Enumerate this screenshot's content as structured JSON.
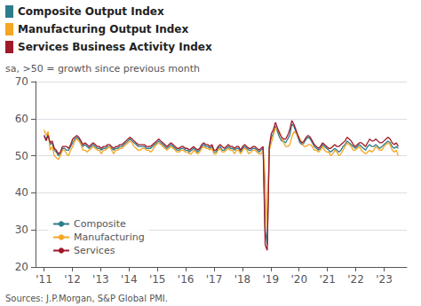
{
  "chart_data": {
    "type": "line",
    "subtitle": "sa, >50 = growth since previous month",
    "annotations": [
      {
        "text": "Composite Output Index",
        "color": "#2E7D8C"
      },
      {
        "text": "Manufacturing Output Index",
        "color": "#F5A623"
      },
      {
        "text": "Services Business Activity Index",
        "color": "#A0192A"
      },
      {
        "text": "Sources: J.P.Morgan, S&P Global PMI."
      }
    ],
    "xlim": [
      2010.7,
      2023.8
    ],
    "xticks": [
      {
        "value": 2011,
        "label": "'11"
      },
      {
        "value": 2012,
        "label": "'12"
      },
      {
        "value": 2013,
        "label": "'13"
      },
      {
        "value": 2014,
        "label": "'14"
      },
      {
        "value": 2015,
        "label": "'15"
      },
      {
        "value": 2016,
        "label": "'16"
      },
      {
        "value": 2017,
        "label": "'17"
      },
      {
        "value": 2018,
        "label": "'18"
      },
      {
        "value": 2019,
        "label": "'19"
      },
      {
        "value": 2020,
        "label": "'20"
      },
      {
        "value": 2021,
        "label": "'21"
      },
      {
        "value": 2022,
        "label": "'22"
      },
      {
        "value": 2023,
        "label": "'23"
      }
    ],
    "ylim": [
      20,
      70
    ],
    "yticks": [
      20,
      30,
      40,
      50,
      60,
      70
    ],
    "grid": true,
    "legend": "lower left",
    "x": [
      2011.0,
      2011.0723,
      2011.1445,
      2011.2168,
      2011.289,
      2011.3613,
      2011.4335,
      2011.5058,
      2011.578,
      2011.6503,
      2011.7225,
      2011.7948,
      2011.8671,
      2011.9393,
      2012.0116,
      2012.0838,
      2012.1561,
      2012.2283,
      2012.3006,
      2012.3728,
      2012.4451,
      2012.5173,
      2012.5896,
      2012.6618,
      2012.7341,
      2012.8064,
      2012.8786,
      2012.9509,
      2013.0231,
      2013.0954,
      2013.1676,
      2013.2399,
      2013.3121,
      2013.3844,
      2013.4566,
      2013.5289,
      2013.6012,
      2013.6734,
      2013.7457,
      2013.8179,
      2013.8902,
      2013.9624,
      2014.0347,
      2014.1069,
      2014.1792,
      2014.2514,
      2014.3237,
      2014.396,
      2014.4682,
      2014.5405,
      2014.6127,
      2014.685,
      2014.7572,
      2014.8295,
      2014.9017,
      2014.974,
      2015.0462,
      2015.1185,
      2015.1908,
      2015.263,
      2015.3353,
      2015.4075,
      2015.4798,
      2015.552,
      2015.6243,
      2015.6965,
      2015.7688,
      2015.841,
      2015.9133,
      2015.9855,
      2016.0578,
      2016.1301,
      2016.2023,
      2016.2746,
      2016.3468,
      2016.4191,
      2016.4913,
      2016.5636,
      2016.6358,
      2016.7081,
      2016.7803,
      2016.8526,
      2016.9249,
      2016.9971,
      2017.0694,
      2017.1416,
      2017.2139,
      2017.2861,
      2017.3584,
      2017.4306,
      2017.5029,
      2017.5751,
      2017.6474,
      2017.7197,
      2017.7919,
      2017.8642,
      2017.9364,
      2018.0087,
      2018.0809,
      2018.1532,
      2018.2254,
      2018.2977,
      2018.3699,
      2018.4422,
      2018.5145,
      2018.5867,
      2018.659,
      2018.7312,
      2018.8035,
      2018.8757,
      2018.948,
      2019.0202,
      2019.0925,
      2019.1647,
      2019.237,
      2019.3092,
      2019.3815,
      2019.4538,
      2019.526,
      2019.5983,
      2019.6705,
      2019.7428,
      2019.815,
      2019.8873,
      2019.9595,
      2020.0318,
      2020.104,
      2020.1763,
      2020.2486,
      2020.3208,
      2020.3931,
      2020.4653,
      2020.5376,
      2020.6098,
      2020.6821,
      2020.7543,
      2020.8266,
      2020.8988,
      2020.9711,
      2021.0434,
      2021.1156,
      2021.1879,
      2021.2601,
      2021.3324,
      2021.4046,
      2021.4769,
      2021.5491,
      2021.6214,
      2021.6936,
      2021.7659,
      2021.8382,
      2021.9104,
      2021.9827,
      2022.0549,
      2022.1272,
      2022.1994,
      2022.2717,
      2022.3439,
      2022.4162,
      2022.4884,
      2022.5607,
      2022.6329,
      2022.7052,
      2022.7775,
      2022.8497,
      2022.922,
      2022.9942,
      2023.0665,
      2023.1387,
      2023.211,
      2023.2832,
      2023.3555,
      2023.4277,
      2023.5
    ],
    "series": [
      {
        "name": "Composite",
        "color": "#2E7D8C",
        "values": [
          55.5,
          54.5,
          55.8,
          53.0,
          53.5,
          51.5,
          51.0,
          50.0,
          50.5,
          52.0,
          52.0,
          51.5,
          51.5,
          52.5,
          53.5,
          54.5,
          55.0,
          54.5,
          53.5,
          52.5,
          53.0,
          52.5,
          52.0,
          52.5,
          53.0,
          52.5,
          52.0,
          52.0,
          51.5,
          52.0,
          52.0,
          52.5,
          52.5,
          52.0,
          51.5,
          52.0,
          52.0,
          52.5,
          52.5,
          53.0,
          53.5,
          54.0,
          54.5,
          54.0,
          53.5,
          53.0,
          52.5,
          52.5,
          52.5,
          52.5,
          52.0,
          52.0,
          52.0,
          52.5,
          53.0,
          53.5,
          54.0,
          53.5,
          53.0,
          52.5,
          52.0,
          52.5,
          53.0,
          52.5,
          52.0,
          51.5,
          51.5,
          52.0,
          52.0,
          51.5,
          51.5,
          51.0,
          51.5,
          52.0,
          51.5,
          51.0,
          51.5,
          52.5,
          53.0,
          52.5,
          52.5,
          52.0,
          52.5,
          51.0,
          51.0,
          52.0,
          52.5,
          51.5,
          51.5,
          52.0,
          52.5,
          52.0,
          52.0,
          51.5,
          52.0,
          52.0,
          51.0,
          52.0,
          52.5,
          52.0,
          51.5,
          51.5,
          52.0,
          52.0,
          51.5,
          51.0,
          51.5,
          52.0,
          30.0,
          26.0,
          52.0,
          55.0,
          56.0,
          58.0,
          56.5,
          55.0,
          54.0,
          54.0,
          53.5,
          54.5,
          55.5,
          58.5,
          58.0,
          56.5,
          55.0,
          53.5,
          53.0,
          53.5,
          54.5,
          55.0,
          54.5,
          53.5,
          52.5,
          52.0,
          51.5,
          52.0,
          53.0,
          52.5,
          52.0,
          51.5,
          51.0,
          51.5,
          52.0,
          51.5,
          51.0,
          51.5,
          52.5,
          53.0,
          54.0,
          53.5,
          53.0,
          52.5,
          52.0,
          52.5,
          53.0,
          52.5,
          52.0,
          51.5,
          52.5,
          53.0,
          52.5,
          52.5,
          53.0,
          52.5,
          52.0,
          52.5,
          53.0,
          53.5,
          54.0,
          53.5,
          52.5,
          52.0,
          52.5,
          52.0
        ]
      },
      {
        "name": "Manufacturing",
        "color": "#F5A623",
        "values": [
          57.0,
          55.5,
          56.5,
          51.5,
          52.5,
          50.0,
          49.5,
          49.0,
          50.0,
          51.5,
          51.5,
          50.5,
          50.0,
          51.5,
          52.5,
          54.0,
          54.5,
          54.0,
          53.0,
          51.5,
          51.5,
          51.0,
          51.5,
          52.0,
          52.5,
          52.0,
          51.5,
          51.5,
          50.5,
          51.5,
          51.5,
          52.0,
          52.5,
          51.5,
          50.5,
          51.5,
          51.5,
          52.0,
          52.0,
          52.5,
          53.0,
          53.5,
          54.0,
          53.5,
          52.5,
          52.0,
          51.5,
          51.5,
          52.0,
          52.0,
          51.5,
          51.5,
          51.0,
          51.5,
          52.5,
          53.0,
          53.5,
          53.0,
          52.5,
          52.0,
          51.5,
          52.0,
          52.5,
          52.0,
          51.5,
          51.0,
          51.0,
          51.5,
          51.5,
          51.0,
          51.0,
          50.5,
          50.5,
          51.5,
          51.0,
          50.5,
          51.0,
          52.0,
          52.5,
          52.0,
          52.0,
          51.5,
          52.0,
          50.5,
          50.5,
          51.5,
          52.0,
          51.0,
          51.0,
          51.5,
          52.0,
          51.5,
          51.5,
          50.5,
          51.5,
          51.5,
          50.5,
          51.5,
          52.0,
          51.5,
          50.5,
          51.0,
          51.5,
          51.5,
          51.0,
          50.5,
          50.5,
          51.5,
          44.0,
          30.0,
          51.5,
          53.5,
          55.5,
          57.5,
          57.0,
          56.5,
          55.0,
          53.5,
          52.5,
          52.5,
          53.0,
          55.0,
          56.5,
          56.0,
          55.5,
          54.5,
          53.5,
          52.5,
          52.5,
          53.0,
          53.0,
          52.5,
          51.5,
          51.5,
          51.0,
          51.5,
          52.5,
          51.5,
          51.0,
          51.0,
          50.0,
          50.5,
          51.5,
          51.0,
          50.0,
          50.5,
          51.5,
          52.5,
          53.5,
          53.0,
          52.5,
          51.5,
          51.5,
          52.0,
          52.5,
          51.5,
          51.0,
          50.5,
          51.0,
          51.5,
          51.0,
          51.5,
          52.5,
          52.0,
          51.5,
          51.5,
          52.5,
          53.0,
          53.5,
          53.0,
          51.5,
          51.0,
          51.5,
          50.0
        ]
      },
      {
        "name": "Services",
        "color": "#A0192A",
        "values": [
          55.5,
          54.0,
          55.5,
          53.5,
          54.0,
          52.0,
          51.5,
          50.5,
          51.0,
          52.5,
          52.5,
          52.5,
          52.0,
          53.0,
          54.5,
          55.0,
          55.5,
          55.0,
          54.0,
          53.0,
          53.5,
          53.0,
          52.5,
          53.0,
          53.5,
          53.0,
          52.5,
          52.5,
          52.0,
          52.5,
          52.5,
          53.0,
          53.0,
          52.5,
          52.0,
          52.5,
          52.5,
          53.0,
          53.0,
          53.5,
          54.0,
          54.5,
          55.0,
          54.5,
          54.0,
          53.5,
          53.0,
          53.0,
          53.0,
          53.0,
          52.5,
          52.5,
          52.5,
          53.0,
          53.5,
          54.0,
          54.5,
          54.0,
          53.5,
          53.0,
          52.5,
          53.0,
          53.5,
          53.0,
          52.5,
          52.0,
          52.0,
          52.5,
          52.5,
          52.0,
          52.0,
          51.5,
          52.0,
          52.5,
          52.0,
          51.5,
          52.0,
          53.0,
          53.5,
          53.0,
          53.0,
          52.5,
          53.0,
          51.5,
          51.5,
          52.5,
          53.0,
          52.5,
          52.0,
          52.5,
          53.0,
          52.5,
          52.5,
          52.0,
          52.5,
          52.5,
          51.5,
          52.5,
          53.0,
          52.5,
          52.0,
          52.0,
          52.5,
          52.5,
          52.0,
          51.5,
          52.0,
          52.5,
          26.0,
          24.5,
          52.5,
          56.0,
          57.0,
          59.0,
          57.5,
          56.0,
          55.0,
          54.5,
          54.5,
          55.5,
          57.0,
          59.5,
          58.5,
          57.0,
          55.5,
          54.0,
          53.5,
          54.0,
          55.0,
          55.5,
          55.0,
          54.0,
          53.0,
          52.5,
          52.0,
          52.5,
          53.5,
          53.0,
          52.5,
          52.0,
          52.0,
          52.5,
          53.0,
          52.5,
          52.5,
          53.0,
          53.5,
          54.0,
          55.0,
          54.5,
          54.0,
          53.0,
          52.5,
          53.0,
          53.5,
          53.5,
          53.0,
          52.5,
          53.5,
          54.5,
          54.0,
          54.0,
          54.5,
          54.0,
          53.5,
          53.5,
          54.0,
          54.5,
          55.0,
          54.5,
          53.5,
          53.0,
          53.5,
          52.5
        ]
      }
    ]
  }
}
